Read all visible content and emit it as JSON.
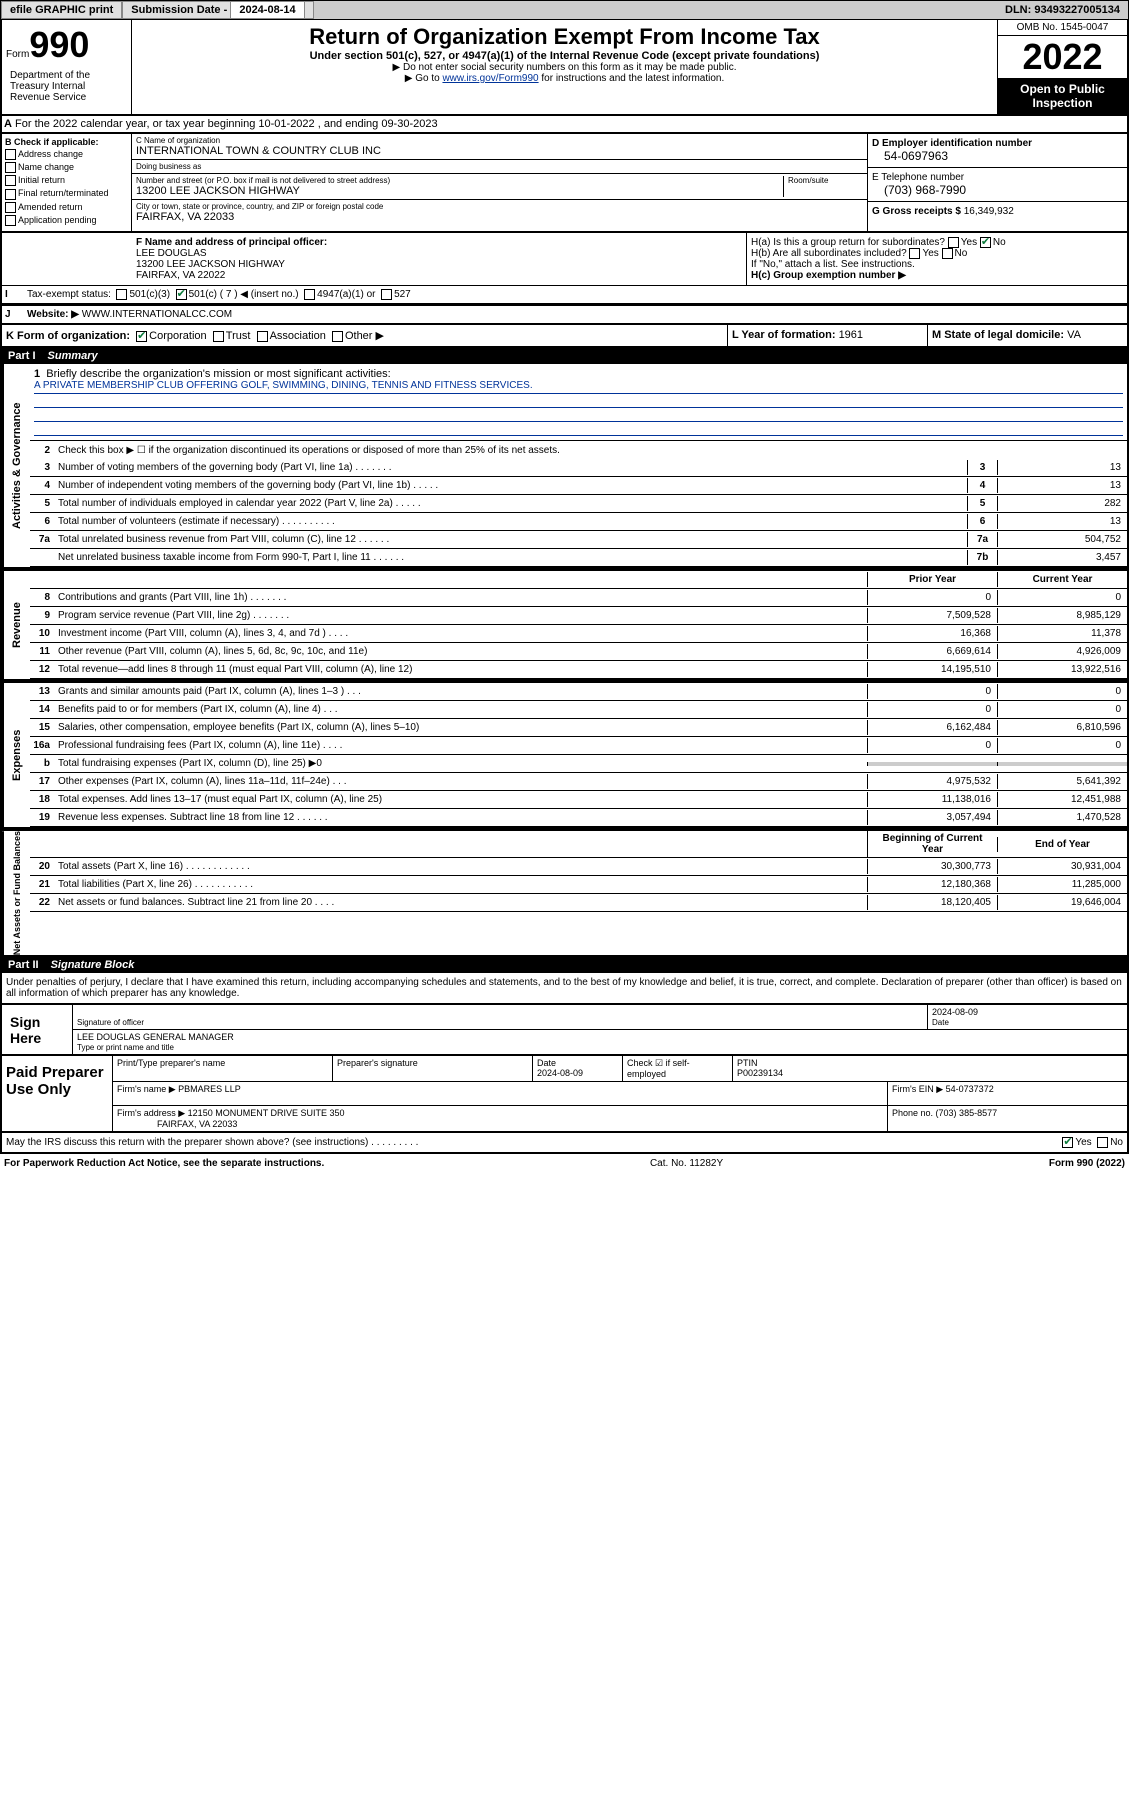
{
  "topbar": {
    "efile_label": "efile GRAPHIC print",
    "sub_label": "Submission Date - ",
    "sub_date": "2024-08-14",
    "dln_label": "DLN: ",
    "dln": "93493227005134"
  },
  "header": {
    "form_word": "Form",
    "form_num": "990",
    "title": "Return of Organization Exempt From Income Tax",
    "sub1": "Under section 501(c), 527, or 4947(a)(1) of the Internal Revenue Code (except private foundations)",
    "sub2": "▶ Do not enter social security numbers on this form as it may be made public.",
    "sub3_pre": "▶ Go to ",
    "sub3_link": "www.irs.gov/Form990",
    "sub3_post": " for instructions and the latest information.",
    "omb": "OMB No. 1545-0047",
    "year": "2022",
    "inspection": "Open to Public Inspection",
    "dept": "Department of the Treasury\nInternal Revenue Service"
  },
  "row_a": "For the 2022 calendar year, or tax year beginning 10-01-2022    , and ending 09-30-2023",
  "col_b": {
    "title": "B Check if applicable:",
    "items": [
      "Address change",
      "Name change",
      "Initial return",
      "Final return/terminated",
      "Amended return",
      "Application pending"
    ]
  },
  "col_c": {
    "name_label": "C Name of organization",
    "name": "INTERNATIONAL TOWN & COUNTRY CLUB INC",
    "dba_label": "Doing business as",
    "dba": "",
    "street_label": "Number and street (or P.O. box if mail is not delivered to street address)",
    "room_label": "Room/suite",
    "street": "13200 LEE JACKSON HIGHWAY",
    "city_label": "City or town, state or province, country, and ZIP or foreign postal code",
    "city": "FAIRFAX, VA  22033"
  },
  "col_d": {
    "ein_label": "D Employer identification number",
    "ein": "54-0697963",
    "phone_label": "E Telephone number",
    "phone": "(703) 968-7990",
    "gross_label": "G Gross receipts $ ",
    "gross": "16,349,932"
  },
  "section_f": {
    "label": "F  Name and address of principal officer:",
    "name": "LEE DOUGLAS",
    "addr1": "13200 LEE JACKSON HIGHWAY",
    "addr2": "FAIRFAX, VA  22022"
  },
  "section_h": {
    "ha": "H(a)  Is this a group return for subordinates?",
    "ha_yes": "Yes",
    "ha_no": "No",
    "hb": "H(b)  Are all subordinates included?",
    "hb_yes": "Yes",
    "hb_no": "No",
    "hb_note": "If \"No,\" attach a list. See instructions.",
    "hc": "H(c)  Group exemption number ▶"
  },
  "row_i": {
    "label": "Tax-exempt status:",
    "opt1": "501(c)(3)",
    "opt2": "501(c) ( 7 ) ◀ (insert no.)",
    "opt3": "4947(a)(1) or",
    "opt4": "527"
  },
  "row_j": {
    "label": "Website: ▶",
    "val": "WWW.INTERNATIONALCC.COM"
  },
  "row_k": {
    "label": "K Form of organization:",
    "opts": [
      "Corporation",
      "Trust",
      "Association",
      "Other ▶"
    ]
  },
  "row_l": {
    "year_label": "L Year of formation: ",
    "year": "1961",
    "state_label": "M State of legal domicile: ",
    "state": "VA"
  },
  "part1": {
    "label": "Part I",
    "title": "Summary"
  },
  "mission": {
    "q": "Briefly describe the organization's mission or most significant activities:",
    "text": "A PRIVATE MEMBERSHIP CLUB OFFERING GOLF, SWIMMING, DINING, TENNIS AND FITNESS SERVICES."
  },
  "line2": "Check this box ▶ ☐  if the organization discontinued its operations or disposed of more than 25% of its net assets.",
  "governance": {
    "label": "Activities & Governance",
    "rows": [
      {
        "n": "3",
        "d": "Number of voting members of the governing body (Part VI, line 1a)   .    .    .    .    .    .    .",
        "nb": "3",
        "v": "13"
      },
      {
        "n": "4",
        "d": "Number of independent voting members of the governing body (Part VI, line 1b)   .    .    .    .    .",
        "nb": "4",
        "v": "13"
      },
      {
        "n": "5",
        "d": "Total number of individuals employed in calendar year 2022 (Part V, line 2a)   .    .    .    .    .",
        "nb": "5",
        "v": "282"
      },
      {
        "n": "6",
        "d": "Total number of volunteers (estimate if necessary)   .    .    .    .    .    .    .    .    .    .",
        "nb": "6",
        "v": "13"
      },
      {
        "n": "7a",
        "d": "Total unrelated business revenue from Part VIII, column (C), line 12   .    .    .    .    .    .",
        "nb": "7a",
        "v": "504,752"
      },
      {
        "n": "",
        "d": "Net unrelated business taxable income from Form 990-T, Part I, line 11   .    .    .    .    .    .",
        "nb": "7b",
        "v": "3,457"
      }
    ]
  },
  "col_headers": {
    "prior": "Prior Year",
    "current": "Current Year"
  },
  "revenue": {
    "label": "Revenue",
    "rows": [
      {
        "n": "8",
        "d": "Contributions and grants (Part VIII, line 1h)   .    .    .    .    .    .    .",
        "p": "0",
        "c": "0"
      },
      {
        "n": "9",
        "d": "Program service revenue (Part VIII, line 2g)   .    .    .    .    .    .    .",
        "p": "7,509,528",
        "c": "8,985,129"
      },
      {
        "n": "10",
        "d": "Investment income (Part VIII, column (A), lines 3, 4, and 7d )   .    .    .    .",
        "p": "16,368",
        "c": "11,378"
      },
      {
        "n": "11",
        "d": "Other revenue (Part VIII, column (A), lines 5, 6d, 8c, 9c, 10c, and 11e)",
        "p": "6,669,614",
        "c": "4,926,009"
      },
      {
        "n": "12",
        "d": "Total revenue—add lines 8 through 11 (must equal Part VIII, column (A), line 12)",
        "p": "14,195,510",
        "c": "13,922,516"
      }
    ]
  },
  "expenses": {
    "label": "Expenses",
    "rows": [
      {
        "n": "13",
        "d": "Grants and similar amounts paid (Part IX, column (A), lines 1–3 )   .    .    .",
        "p": "0",
        "c": "0"
      },
      {
        "n": "14",
        "d": "Benefits paid to or for members (Part IX, column (A), line 4)   .    .    .",
        "p": "0",
        "c": "0"
      },
      {
        "n": "15",
        "d": "Salaries, other compensation, employee benefits (Part IX, column (A), lines 5–10)",
        "p": "6,162,484",
        "c": "6,810,596"
      },
      {
        "n": "16a",
        "d": "Professional fundraising fees (Part IX, column (A), line 11e)   .    .    .    .",
        "p": "0",
        "c": "0"
      },
      {
        "n": "b",
        "d": "Total fundraising expenses (Part IX, column (D), line 25) ▶0",
        "p": "",
        "c": ""
      },
      {
        "n": "17",
        "d": "Other expenses (Part IX, column (A), lines 11a–11d, 11f–24e)   .    .    .",
        "p": "4,975,532",
        "c": "5,641,392"
      },
      {
        "n": "18",
        "d": "Total expenses. Add lines 13–17 (must equal Part IX, column (A), line 25)",
        "p": "11,138,016",
        "c": "12,451,988"
      },
      {
        "n": "19",
        "d": "Revenue less expenses. Subtract line 18 from line 12   .    .    .    .    .    .",
        "p": "3,057,494",
        "c": "1,470,528"
      }
    ]
  },
  "netassets": {
    "label": "Net Assets or Fund Balances",
    "header": {
      "p": "Beginning of Current Year",
      "c": "End of Year"
    },
    "rows": [
      {
        "n": "20",
        "d": "Total assets (Part X, line 16)   .    .    .    .    .    .    .    .    .    .    .    .",
        "p": "30,300,773",
        "c": "30,931,004"
      },
      {
        "n": "21",
        "d": "Total liabilities (Part X, line 26)   .    .    .    .    .    .    .    .    .    .    .",
        "p": "12,180,368",
        "c": "11,285,000"
      },
      {
        "n": "22",
        "d": "Net assets or fund balances. Subtract line 21 from line 20   .    .    .    .",
        "p": "18,120,405",
        "c": "19,646,004"
      }
    ]
  },
  "part2": {
    "label": "Part II",
    "title": "Signature Block"
  },
  "sig_intro": "Under penalties of perjury, I declare that I have examined this return, including accompanying schedules and statements, and to the best of my knowledge and belief, it is true, correct, and complete. Declaration of preparer (other than officer) is based on all information of which preparer has any knowledge.",
  "sign": {
    "left": "Sign Here",
    "sig_label": "Signature of officer",
    "date": "2024-08-09",
    "date_label": "Date",
    "name": "LEE DOUGLAS  GENERAL MANAGER",
    "name_label": "Type or print name and title"
  },
  "prep": {
    "left": "Paid Preparer Use Only",
    "h1": "Print/Type preparer's name",
    "h2": "Preparer's signature",
    "h3": "Date",
    "h3v": "2024-08-09",
    "h4": "Check ☑ if self-employed",
    "h5": "PTIN",
    "h5v": "P00239134",
    "firm_label": "Firm's name    ▶",
    "firm": "PBMARES LLP",
    "ein_label": "Firm's EIN ▶",
    "ein": "54-0737372",
    "addr_label": "Firm's address ▶",
    "addr1": "12150 MONUMENT DRIVE SUITE 350",
    "addr2": "FAIRFAX, VA  22033",
    "phone_label": "Phone no. ",
    "phone": "(703) 385-8577"
  },
  "footer": {
    "q": "May the IRS discuss this return with the preparer shown above? (see instructions)   .    .    .    .    .    .    .    .    .",
    "yes": "Yes",
    "no": "No"
  },
  "final": {
    "left": "For Paperwork Reduction Act Notice, see the separate instructions.",
    "mid": "Cat. No. 11282Y",
    "right": "Form 990 (2022)"
  }
}
